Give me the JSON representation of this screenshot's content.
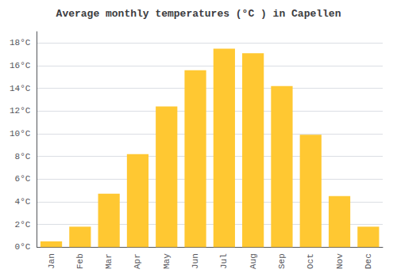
{
  "chart_data": {
    "type": "bar",
    "title": "Average monthly temperatures (°C ) in Capellen",
    "categories": [
      "Jan",
      "Feb",
      "Mar",
      "Apr",
      "May",
      "Jun",
      "Jul",
      "Aug",
      "Sep",
      "Oct",
      "Nov",
      "Dec"
    ],
    "values": [
      0.5,
      1.8,
      4.7,
      8.2,
      12.4,
      15.6,
      17.5,
      17.1,
      14.2,
      9.9,
      4.5,
      1.8
    ],
    "color": "#FFC832",
    "ylim": [
      0,
      19
    ],
    "yticks": [
      {
        "value": 0,
        "label": "0°C"
      },
      {
        "value": 2,
        "label": "2°C"
      },
      {
        "value": 4,
        "label": "4°C"
      },
      {
        "value": 6,
        "label": "6°C"
      },
      {
        "value": 8,
        "label": "8°C"
      },
      {
        "value": 10,
        "label": "10°C"
      },
      {
        "value": 12,
        "label": "12°C"
      },
      {
        "value": 14,
        "label": "14°C"
      },
      {
        "value": 16,
        "label": "16°C"
      },
      {
        "value": 18,
        "label": "18°C"
      }
    ],
    "grid": true
  }
}
